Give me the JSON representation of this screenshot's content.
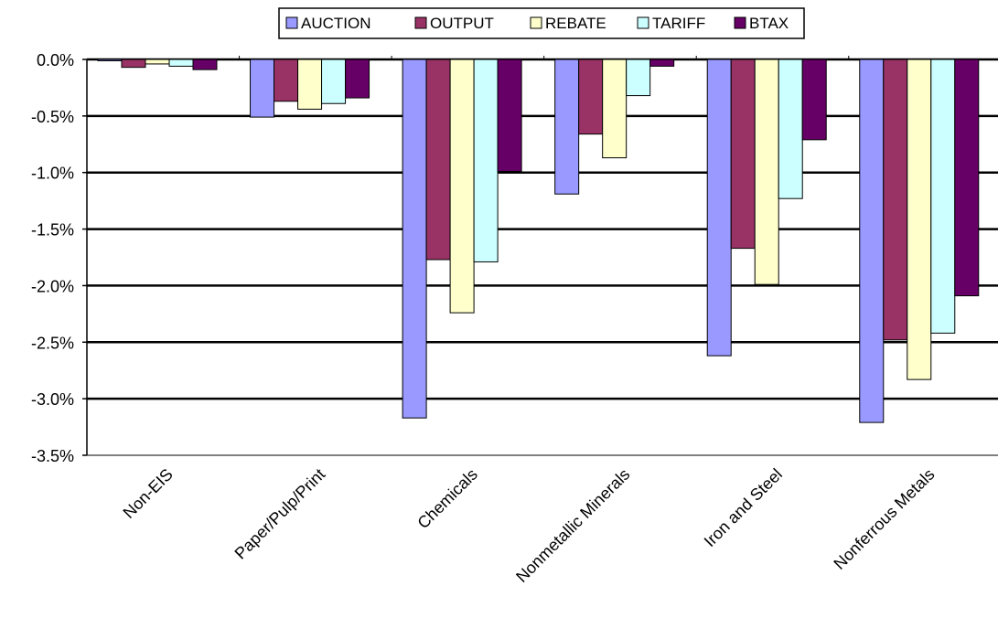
{
  "chart_data": {
    "type": "bar",
    "title": "",
    "xlabel": "",
    "ylabel": "",
    "ylim": [
      -3.5,
      0
    ],
    "y_ticks": [
      0,
      -0.5,
      -1,
      -1.5,
      -2,
      -2.5,
      -3,
      -3.5
    ],
    "y_tick_labels": [
      "0.0%",
      "-0.5%",
      "-1.0%",
      "-1.5%",
      "-2.0%",
      "-2.5%",
      "-3.0%",
      "-3.5%"
    ],
    "grid": true,
    "legend_position": "top",
    "categories": [
      "Non-EIS",
      "Paper/Pulp/Print",
      "Chemicals",
      "Nonmetallic Minerals",
      "Iron and Steel",
      "Nonferrous Metals"
    ],
    "series": [
      {
        "name": "AUCTION",
        "color": "#9999ff",
        "values": [
          -0.01,
          -0.51,
          -3.17,
          -1.19,
          -2.62,
          -3.21
        ]
      },
      {
        "name": "OUTPUT",
        "color": "#993366",
        "values": [
          -0.07,
          -0.37,
          -1.77,
          -0.66,
          -1.67,
          -2.48
        ]
      },
      {
        "name": "REBATE",
        "color": "#ffffcc",
        "values": [
          -0.04,
          -0.44,
          -2.24,
          -0.87,
          -1.99,
          -2.83
        ]
      },
      {
        "name": "TARIFF",
        "color": "#ccffff",
        "values": [
          -0.06,
          -0.39,
          -1.79,
          -0.32,
          -1.23,
          -2.42
        ]
      },
      {
        "name": "BTAX",
        "color": "#660066",
        "values": [
          -0.09,
          -0.34,
          -0.99,
          -0.06,
          -0.71,
          -2.09
        ]
      }
    ]
  }
}
